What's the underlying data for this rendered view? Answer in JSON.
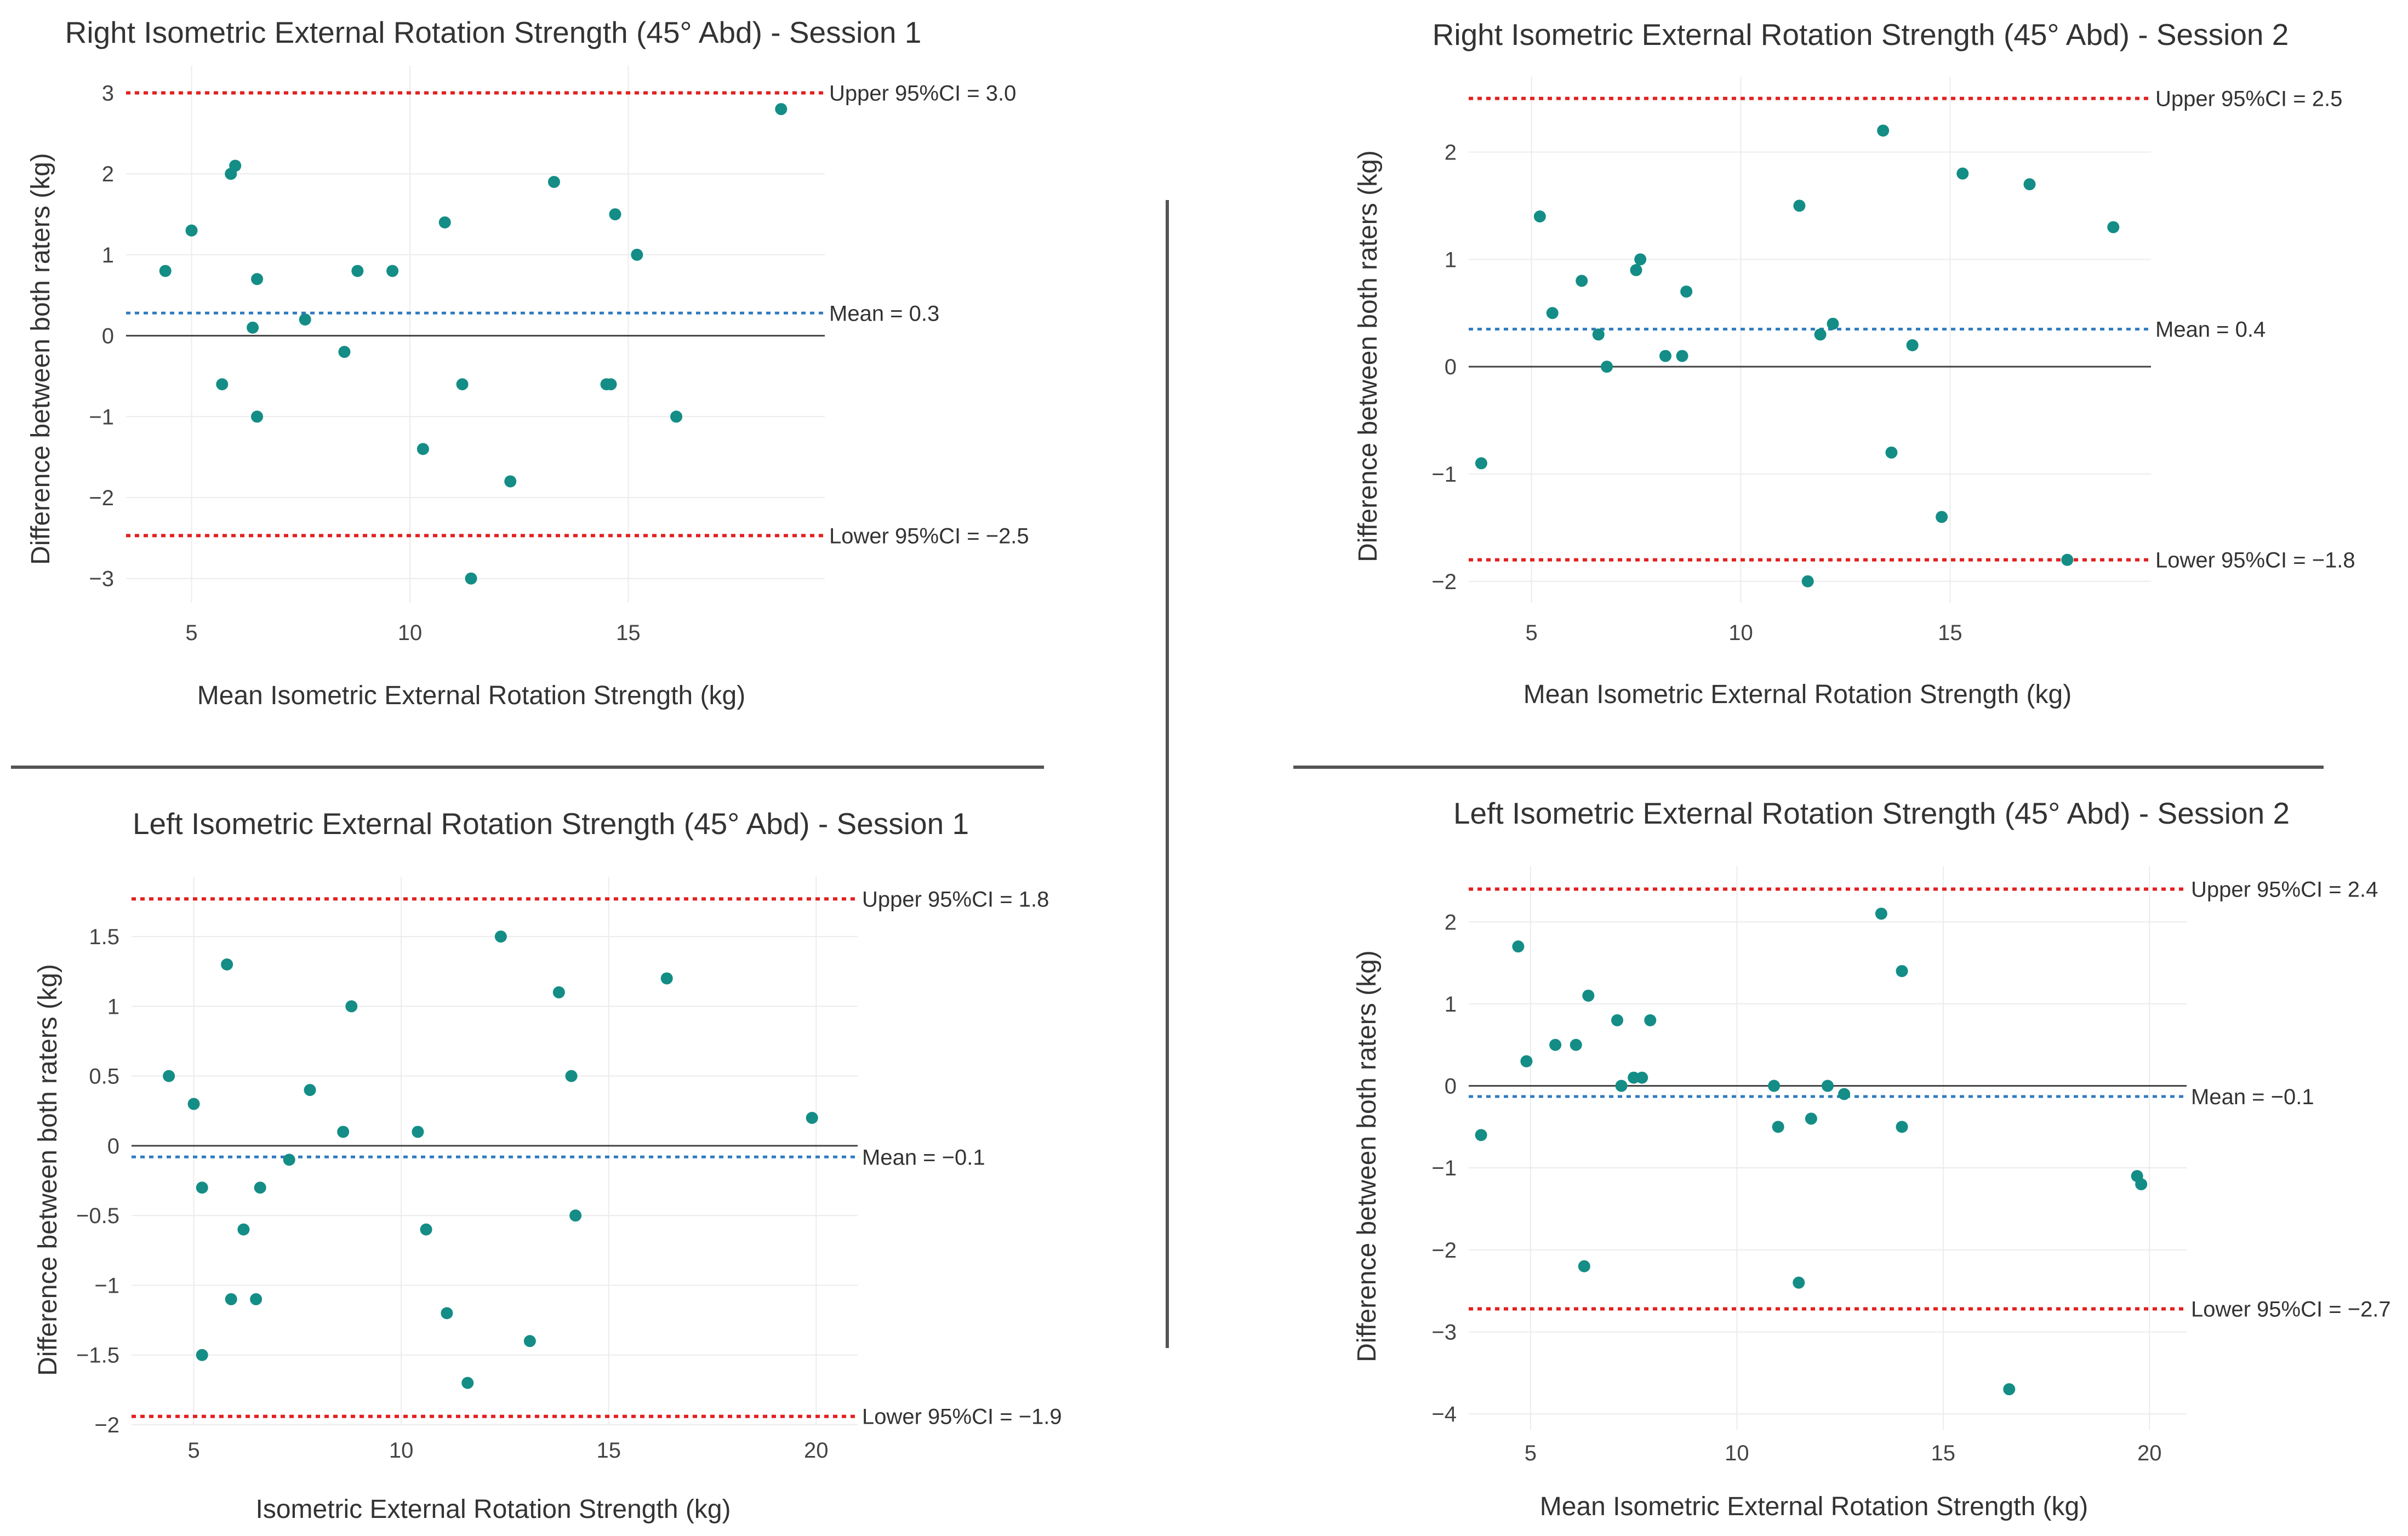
{
  "chart_data": [
    {
      "type": "scatter",
      "title": "Right Isometric External Rotation Strength (45° Abd) - Session 1",
      "xlabel": "Mean Isometric External Rotation Strength (kg)",
      "ylabel": "Difference between both raters (kg)",
      "xlim": [
        3.5,
        19.5
      ],
      "ylim": [
        -3.3,
        3.2
      ],
      "xticks": [
        5,
        10,
        15
      ],
      "xtick_labels": [
        "5",
        "10",
        "15"
      ],
      "yticks": [
        -3,
        -2,
        -1,
        0,
        1,
        2,
        3
      ],
      "ytick_labels": [
        "−3",
        "−2",
        "−1",
        "0",
        "1",
        "2",
        "3"
      ],
      "reference_lines": {
        "upper": {
          "value": 3.0,
          "label": "Upper 95%CI = 3.0"
        },
        "mean": {
          "value": 0.28,
          "label": "Mean = 0.3"
        },
        "lower": {
          "value": -2.47,
          "label": "Lower 95%CI = −2.5"
        }
      },
      "points": {
        "x": [
          4.4,
          5.0,
          5.7,
          5.9,
          6.0,
          6.4,
          6.5,
          6.5,
          7.6,
          8.5,
          8.8,
          9.6,
          10.3,
          10.8,
          11.2,
          11.4,
          12.3,
          13.3,
          14.5,
          14.6,
          14.7,
          15.2,
          16.1,
          18.5
        ],
        "y": [
          0.8,
          1.3,
          -0.6,
          2.0,
          2.1,
          0.1,
          0.7,
          -1.0,
          0.2,
          -0.2,
          0.8,
          0.8,
          -1.4,
          1.4,
          -0.6,
          -3.0,
          -1.8,
          1.9,
          -0.6,
          -0.6,
          1.5,
          1.0,
          -1.0,
          2.8
        ]
      }
    },
    {
      "type": "scatter",
      "title": "Right Isometric External Rotation Strength (45° Abd) - Session 2",
      "xlabel": "Mean Isometric External Rotation Strength (kg)",
      "ylabel": "Difference between both raters (kg)",
      "xlim": [
        3.5,
        19.8
      ],
      "ylim": [
        -2.2,
        2.6
      ],
      "xticks": [
        5,
        10,
        15
      ],
      "xtick_labels": [
        "5",
        "10",
        "15"
      ],
      "yticks": [
        -2,
        -1,
        0,
        1,
        2
      ],
      "ytick_labels": [
        "−2",
        "−1",
        "0",
        "1",
        "2"
      ],
      "reference_lines": {
        "upper": {
          "value": 2.5,
          "label": "Upper 95%CI = 2.5"
        },
        "mean": {
          "value": 0.35,
          "label": "Mean = 0.4"
        },
        "lower": {
          "value": -1.8,
          "label": "Lower 95%CI = −1.8"
        }
      },
      "points": {
        "x": [
          3.8,
          5.2,
          5.5,
          6.2,
          6.6,
          6.8,
          7.5,
          7.6,
          8.2,
          8.6,
          8.7,
          11.4,
          11.6,
          11.9,
          12.2,
          13.4,
          13.6,
          14.1,
          14.8,
          15.3,
          16.9,
          17.8,
          18.9
        ],
        "y": [
          -0.9,
          1.4,
          0.5,
          0.8,
          0.3,
          0.0,
          0.9,
          1.0,
          0.1,
          0.1,
          0.7,
          1.5,
          -2.0,
          0.3,
          0.4,
          2.2,
          -0.8,
          0.2,
          -1.4,
          1.8,
          1.7,
          -1.8,
          1.3
        ]
      }
    },
    {
      "type": "scatter",
      "title": "Left Isometric External Rotation Strength (45° Abd) - Session 1",
      "xlabel": "Isometric External Rotation Strength (kg)",
      "ylabel": "Difference between both raters (kg)",
      "xlim": [
        3.5,
        21
      ],
      "ylim": [
        -2.0,
        1.85
      ],
      "xticks": [
        5,
        10,
        15,
        20
      ],
      "xtick_labels": [
        "5",
        "10",
        "15",
        "20"
      ],
      "yticks": [
        -2,
        -1.5,
        -1,
        -0.5,
        0,
        0.5,
        1,
        1.5
      ],
      "ytick_labels": [
        "−2",
        "−1.5",
        "−1",
        "−0.5",
        "0",
        "0.5",
        "1",
        "1.5"
      ],
      "reference_lines": {
        "upper": {
          "value": 1.77,
          "label": "Upper 95%CI =  1.8"
        },
        "mean": {
          "value": -0.08,
          "label": "Mean = −0.1"
        },
        "lower": {
          "value": -1.94,
          "label": "Lower 95%CI = −1.9"
        }
      },
      "points": {
        "x": [
          4.4,
          5.0,
          5.2,
          5.2,
          5.8,
          5.9,
          6.2,
          6.5,
          6.6,
          7.3,
          7.8,
          8.6,
          8.8,
          10.4,
          10.6,
          11.1,
          11.6,
          12.4,
          13.1,
          13.8,
          14.1,
          14.2,
          16.4,
          19.9
        ],
        "y": [
          0.5,
          0.3,
          -0.3,
          -1.5,
          1.3,
          -1.1,
          -0.6,
          -1.1,
          -0.3,
          -0.1,
          0.4,
          0.1,
          1.0,
          0.1,
          -0.6,
          -1.2,
          -1.7,
          1.5,
          -1.4,
          1.1,
          0.5,
          -0.5,
          1.2,
          0.2
        ]
      }
    },
    {
      "type": "scatter",
      "title": "Left Isometric External Rotation Strength (45° Abd) - Session 2",
      "xlabel": "Mean Isometric External Rotation Strength (kg)",
      "ylabel": "Difference between both raters (kg)",
      "xlim": [
        3.5,
        20.9
      ],
      "ylim": [
        -4.2,
        2.55
      ],
      "xticks": [
        5,
        10,
        15,
        20
      ],
      "xtick_labels": [
        "5",
        "10",
        "15",
        "20"
      ],
      "yticks": [
        -4,
        -3,
        -2,
        -1,
        0,
        1,
        2
      ],
      "ytick_labels": [
        "−4",
        "−3",
        "−2",
        "−1",
        "0",
        "1",
        "2"
      ],
      "reference_lines": {
        "upper": {
          "value": 2.4,
          "label": "Upper 95%CI = 2.4"
        },
        "mean": {
          "value": -0.13,
          "label": "Mean = −0.1"
        },
        "lower": {
          "value": -2.72,
          "label": "Lower 95%CI = −2.7"
        }
      },
      "points": {
        "x": [
          3.8,
          4.7,
          4.9,
          5.6,
          6.1,
          6.3,
          6.4,
          7.1,
          7.2,
          7.5,
          7.7,
          7.9,
          10.9,
          11.0,
          11.5,
          11.8,
          12.2,
          12.6,
          13.5,
          14.0,
          14.0,
          16.6,
          19.7,
          19.8
        ],
        "y": [
          -0.6,
          1.7,
          0.3,
          0.5,
          0.5,
          -2.2,
          1.1,
          0.8,
          0.0,
          0.1,
          0.1,
          0.8,
          0.0,
          -0.5,
          -2.4,
          -0.4,
          0.0,
          -0.1,
          2.1,
          1.4,
          -0.5,
          -3.7,
          -1.1,
          -1.2
        ]
      }
    }
  ]
}
